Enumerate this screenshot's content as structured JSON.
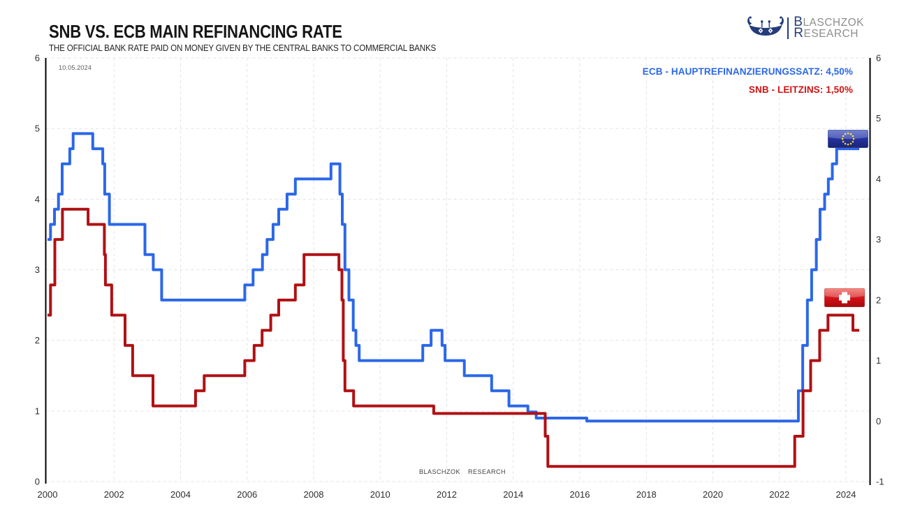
{
  "header": {
    "title": "SNB VS. ECB MAIN REFINANCING RATE",
    "subtitle": "THE OFFICIAL BANK RATE PAID ON MONEY GIVEN BY THE CENTRAL BANKS TO COMMERCIAL BANKS",
    "date_annotation": "10.05.2024"
  },
  "logo": {
    "line1": "BLASCHZOK",
    "line2": "RESEARCH",
    "accent_color": "#243c7c",
    "text_color": "#8e8e8e"
  },
  "legend": {
    "ecb_label": "ECB - HAUPTREFINANZIERUNGSSATZ: 4,50%",
    "snb_label": "SNB - LEITZINS: 1,50%",
    "ecb_color": "#2b67e8",
    "snb_color": "#cf1212"
  },
  "watermark": "BLASCHZOK RESEARCH",
  "flags": {
    "eu": "European Union flag",
    "ch": "Switzerland flag",
    "eu_star_color": "#ffd429",
    "eu_base_color": "#23309b",
    "ch_base_color": "#d01016"
  },
  "chart_data": {
    "type": "line",
    "line_style": "step-after",
    "title": "SNB VS. ECB MAIN REFINANCING RATE",
    "x_range": [
      2000,
      2024.4
    ],
    "x_ticks": [
      2000,
      2002,
      2004,
      2006,
      2008,
      2010,
      2012,
      2014,
      2016,
      2018,
      2020,
      2022,
      2024
    ],
    "left_axis": {
      "range": [
        0,
        6
      ],
      "ticks": [
        0,
        1,
        2,
        3,
        4,
        5,
        6
      ]
    },
    "right_axis": {
      "range": [
        -1,
        6
      ],
      "ticks": [
        -1,
        0,
        1,
        2,
        3,
        4,
        5,
        6
      ]
    },
    "grid": true,
    "gridline_color": "#e2e2e2",
    "axis_color": "#000000",
    "series": [
      {
        "name": "ECB - Hauptrefinanzierungssatz",
        "axis": "right",
        "color": "#2b67e8",
        "width": 4,
        "current_value": "4,50%",
        "points": [
          [
            2000.0,
            3.0
          ],
          [
            2000.09,
            3.25
          ],
          [
            2000.21,
            3.5
          ],
          [
            2000.33,
            3.75
          ],
          [
            2000.44,
            4.25
          ],
          [
            2000.67,
            4.5
          ],
          [
            2000.77,
            4.75
          ],
          [
            2001.36,
            4.5
          ],
          [
            2001.66,
            4.25
          ],
          [
            2001.72,
            3.75
          ],
          [
            2001.86,
            3.25
          ],
          [
            2002.93,
            2.75
          ],
          [
            2003.18,
            2.5
          ],
          [
            2003.43,
            2.0
          ],
          [
            2005.93,
            2.25
          ],
          [
            2006.18,
            2.5
          ],
          [
            2006.46,
            2.75
          ],
          [
            2006.6,
            3.0
          ],
          [
            2006.78,
            3.25
          ],
          [
            2006.95,
            3.5
          ],
          [
            2007.2,
            3.75
          ],
          [
            2007.45,
            4.0
          ],
          [
            2008.52,
            4.25
          ],
          [
            2008.79,
            3.75
          ],
          [
            2008.86,
            3.25
          ],
          [
            2008.94,
            2.5
          ],
          [
            2009.06,
            2.0
          ],
          [
            2009.19,
            1.5
          ],
          [
            2009.27,
            1.25
          ],
          [
            2009.37,
            1.0
          ],
          [
            2011.28,
            1.25
          ],
          [
            2011.53,
            1.5
          ],
          [
            2011.86,
            1.25
          ],
          [
            2011.95,
            1.0
          ],
          [
            2012.53,
            0.75
          ],
          [
            2013.35,
            0.5
          ],
          [
            2013.87,
            0.25
          ],
          [
            2014.44,
            0.15
          ],
          [
            2014.69,
            0.05
          ],
          [
            2016.21,
            0.0
          ],
          [
            2022.57,
            0.5
          ],
          [
            2022.7,
            1.25
          ],
          [
            2022.84,
            2.0
          ],
          [
            2022.97,
            2.5
          ],
          [
            2023.11,
            3.0
          ],
          [
            2023.22,
            3.5
          ],
          [
            2023.36,
            3.75
          ],
          [
            2023.47,
            4.0
          ],
          [
            2023.59,
            4.25
          ],
          [
            2023.72,
            4.5
          ]
        ]
      },
      {
        "name": "SNB - Leitzins",
        "axis": "right",
        "color": "#b01013",
        "width": 4,
        "current_value": "1,50%",
        "points": [
          [
            2000.0,
            1.75
          ],
          [
            2000.09,
            2.25
          ],
          [
            2000.22,
            3.0
          ],
          [
            2000.45,
            3.5
          ],
          [
            2001.22,
            3.25
          ],
          [
            2001.71,
            2.75
          ],
          [
            2001.74,
            2.25
          ],
          [
            2001.93,
            1.75
          ],
          [
            2002.33,
            1.25
          ],
          [
            2002.56,
            0.75
          ],
          [
            2003.17,
            0.25
          ],
          [
            2004.45,
            0.5
          ],
          [
            2004.71,
            0.75
          ],
          [
            2005.93,
            1.0
          ],
          [
            2006.21,
            1.25
          ],
          [
            2006.45,
            1.5
          ],
          [
            2006.71,
            1.75
          ],
          [
            2006.95,
            2.0
          ],
          [
            2007.45,
            2.25
          ],
          [
            2007.71,
            2.75
          ],
          [
            2008.76,
            2.5
          ],
          [
            2008.85,
            2.0
          ],
          [
            2008.89,
            1.0
          ],
          [
            2008.94,
            0.5
          ],
          [
            2009.2,
            0.25
          ],
          [
            2011.61,
            0.125
          ],
          [
            2014.96,
            -0.25
          ],
          [
            2015.04,
            -0.75
          ],
          [
            2022.46,
            -0.25
          ],
          [
            2022.71,
            0.5
          ],
          [
            2022.94,
            1.0
          ],
          [
            2023.21,
            1.5
          ],
          [
            2023.46,
            1.75
          ],
          [
            2024.21,
            1.5
          ]
        ]
      }
    ]
  }
}
